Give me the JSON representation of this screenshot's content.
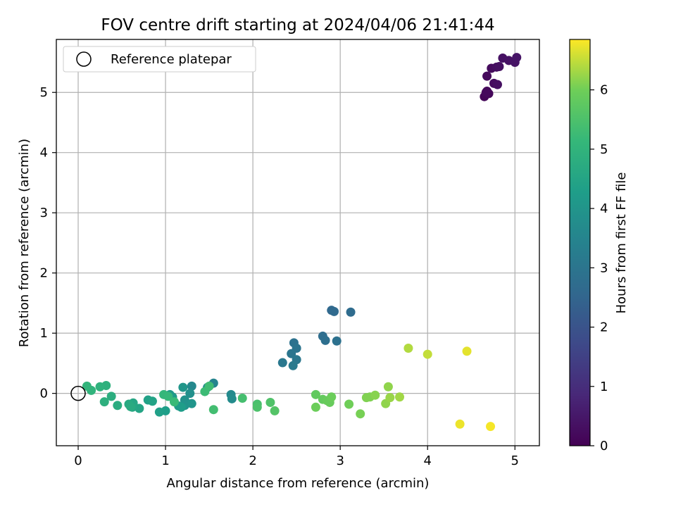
{
  "chart_data": {
    "type": "scatter",
    "title": "FOV centre drift starting at 2024/04/06 21:41:44",
    "xlabel": "Angular distance from reference (arcmin)",
    "ylabel": "Rotation from reference (arcmin)",
    "xlim": [
      -0.25,
      5.28
    ],
    "ylim": [
      -0.87,
      5.88
    ],
    "xticks": [
      0,
      1,
      2,
      3,
      4,
      5
    ],
    "yticks": [
      0,
      1,
      2,
      3,
      4,
      5
    ],
    "grid": true,
    "legend": {
      "placement": "top-left",
      "entries": [
        "Reference platepar"
      ]
    },
    "reference_point": {
      "x": 0,
      "y": 0
    },
    "colorbar": {
      "label": "Hours from first FF file",
      "range": [
        0,
        6.85
      ],
      "ticks": [
        0,
        1,
        2,
        3,
        4,
        5,
        6
      ],
      "colormap": "viridis"
    },
    "points": [
      {
        "x": 4.65,
        "y": 4.93,
        "c": 0.1
      },
      {
        "x": 4.68,
        "y": 5.02,
        "c": 0.12
      },
      {
        "x": 4.7,
        "y": 4.98,
        "c": 0.15
      },
      {
        "x": 4.67,
        "y": 5.0,
        "c": 0.18
      },
      {
        "x": 4.68,
        "y": 5.27,
        "c": 0.2
      },
      {
        "x": 4.73,
        "y": 5.4,
        "c": 0.22
      },
      {
        "x": 4.76,
        "y": 5.15,
        "c": 0.25
      },
      {
        "x": 4.79,
        "y": 5.42,
        "c": 0.28
      },
      {
        "x": 4.8,
        "y": 5.13,
        "c": 0.3
      },
      {
        "x": 4.82,
        "y": 5.43,
        "c": 0.32
      },
      {
        "x": 4.86,
        "y": 5.57,
        "c": 0.35
      },
      {
        "x": 4.93,
        "y": 5.53,
        "c": 0.38
      },
      {
        "x": 5.0,
        "y": 5.5,
        "c": 0.4
      },
      {
        "x": 5.02,
        "y": 5.58,
        "c": 0.42
      },
      {
        "x": 2.9,
        "y": 1.38,
        "c": 2.6
      },
      {
        "x": 2.93,
        "y": 1.36,
        "c": 2.65
      },
      {
        "x": 3.12,
        "y": 1.35,
        "c": 2.7
      },
      {
        "x": 2.8,
        "y": 0.95,
        "c": 2.75
      },
      {
        "x": 2.83,
        "y": 0.88,
        "c": 2.8
      },
      {
        "x": 2.96,
        "y": 0.87,
        "c": 2.85
      },
      {
        "x": 2.47,
        "y": 0.84,
        "c": 2.9
      },
      {
        "x": 2.5,
        "y": 0.75,
        "c": 2.95
      },
      {
        "x": 2.44,
        "y": 0.66,
        "c": 3.0
      },
      {
        "x": 2.5,
        "y": 0.56,
        "c": 3.05
      },
      {
        "x": 2.34,
        "y": 0.51,
        "c": 3.1
      },
      {
        "x": 2.46,
        "y": 0.46,
        "c": 3.15
      },
      {
        "x": 1.55,
        "y": 0.17,
        "c": 3.5
      },
      {
        "x": 1.3,
        "y": 0.12,
        "c": 3.6
      },
      {
        "x": 1.75,
        "y": -0.02,
        "c": 3.65
      },
      {
        "x": 1.76,
        "y": -0.09,
        "c": 3.7
      },
      {
        "x": 1.48,
        "y": 0.1,
        "c": 3.8
      },
      {
        "x": 1.28,
        "y": 0.0,
        "c": 3.85
      },
      {
        "x": 1.22,
        "y": -0.11,
        "c": 3.9
      },
      {
        "x": 1.22,
        "y": -0.2,
        "c": 3.95
      },
      {
        "x": 1.3,
        "y": -0.17,
        "c": 4.0
      },
      {
        "x": 1.2,
        "y": 0.1,
        "c": 4.05
      },
      {
        "x": 1.05,
        "y": -0.02,
        "c": 4.1
      },
      {
        "x": 1.08,
        "y": -0.06,
        "c": 4.15
      },
      {
        "x": 1.15,
        "y": -0.21,
        "c": 4.2
      },
      {
        "x": 1.18,
        "y": -0.23,
        "c": 4.25
      },
      {
        "x": 1.0,
        "y": -0.29,
        "c": 4.3
      },
      {
        "x": 0.93,
        "y": -0.31,
        "c": 4.35
      },
      {
        "x": 0.8,
        "y": -0.11,
        "c": 4.4
      },
      {
        "x": 0.85,
        "y": -0.13,
        "c": 4.45
      },
      {
        "x": 0.7,
        "y": -0.25,
        "c": 4.5
      },
      {
        "x": 0.63,
        "y": -0.16,
        "c": 4.55
      },
      {
        "x": 0.62,
        "y": -0.23,
        "c": 4.6
      },
      {
        "x": 0.58,
        "y": -0.18,
        "c": 4.65
      },
      {
        "x": 0.6,
        "y": -0.22,
        "c": 4.7
      },
      {
        "x": 0.45,
        "y": -0.2,
        "c": 4.75
      },
      {
        "x": 0.38,
        "y": -0.05,
        "c": 4.8
      },
      {
        "x": 0.3,
        "y": -0.14,
        "c": 4.85
      },
      {
        "x": 0.32,
        "y": 0.13,
        "c": 4.9
      },
      {
        "x": 0.25,
        "y": 0.11,
        "c": 4.95
      },
      {
        "x": 0.15,
        "y": 0.05,
        "c": 5.0
      },
      {
        "x": 0.1,
        "y": 0.12,
        "c": 5.05
      },
      {
        "x": 0.98,
        "y": -0.02,
        "c": 5.1
      },
      {
        "x": 1.03,
        "y": -0.05,
        "c": 5.15
      },
      {
        "x": 1.1,
        "y": -0.14,
        "c": 5.2
      },
      {
        "x": 1.45,
        "y": 0.03,
        "c": 5.25
      },
      {
        "x": 1.5,
        "y": 0.12,
        "c": 5.3
      },
      {
        "x": 1.55,
        "y": -0.27,
        "c": 5.35
      },
      {
        "x": 1.88,
        "y": -0.08,
        "c": 5.4
      },
      {
        "x": 2.05,
        "y": -0.18,
        "c": 5.45
      },
      {
        "x": 2.05,
        "y": -0.23,
        "c": 5.5
      },
      {
        "x": 2.2,
        "y": -0.15,
        "c": 5.55
      },
      {
        "x": 2.25,
        "y": -0.29,
        "c": 5.6
      },
      {
        "x": 2.72,
        "y": -0.02,
        "c": 5.8
      },
      {
        "x": 2.8,
        "y": -0.1,
        "c": 5.85
      },
      {
        "x": 2.85,
        "y": -0.12,
        "c": 5.9
      },
      {
        "x": 2.88,
        "y": -0.15,
        "c": 5.9
      },
      {
        "x": 2.9,
        "y": -0.06,
        "c": 5.95
      },
      {
        "x": 2.72,
        "y": -0.23,
        "c": 5.95
      },
      {
        "x": 3.1,
        "y": -0.18,
        "c": 6.0
      },
      {
        "x": 3.23,
        "y": -0.34,
        "c": 6.05
      },
      {
        "x": 3.3,
        "y": -0.07,
        "c": 6.1
      },
      {
        "x": 3.34,
        "y": -0.06,
        "c": 6.1
      },
      {
        "x": 3.4,
        "y": -0.03,
        "c": 6.15
      },
      {
        "x": 3.55,
        "y": 0.11,
        "c": 6.2
      },
      {
        "x": 3.52,
        "y": -0.17,
        "c": 6.2
      },
      {
        "x": 3.57,
        "y": -0.07,
        "c": 6.25
      },
      {
        "x": 3.68,
        "y": -0.06,
        "c": 6.3
      },
      {
        "x": 3.78,
        "y": 0.75,
        "c": 6.4
      },
      {
        "x": 4.0,
        "y": 0.65,
        "c": 6.5
      },
      {
        "x": 4.45,
        "y": 0.7,
        "c": 6.7
      },
      {
        "x": 4.37,
        "y": -0.51,
        "c": 6.75
      },
      {
        "x": 4.72,
        "y": -0.55,
        "c": 6.8
      }
    ]
  }
}
